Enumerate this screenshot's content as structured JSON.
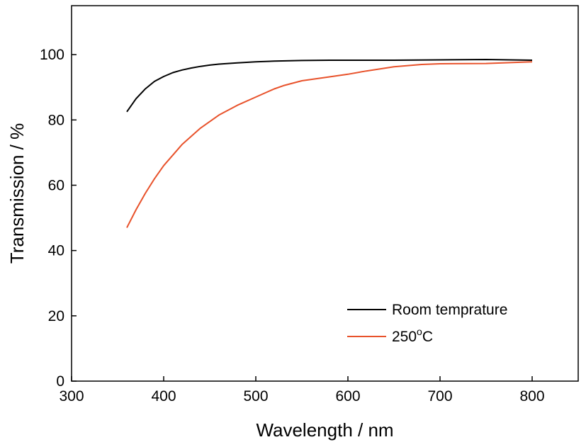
{
  "chart_data": {
    "type": "line",
    "xlabel": "Wavelength / nm",
    "ylabel": "Transmission / %",
    "xlim": [
      300,
      850
    ],
    "ylim": [
      0,
      115
    ],
    "xticks": [
      300,
      400,
      500,
      600,
      700,
      800
    ],
    "yticks": [
      0,
      20,
      40,
      60,
      80,
      100
    ],
    "grid": false,
    "legend": "bottom-right",
    "series": [
      {
        "name": "Room temprature",
        "color": "#000000",
        "x": [
          360,
          365,
          370,
          380,
          390,
          400,
          410,
          420,
          430,
          440,
          450,
          460,
          470,
          480,
          500,
          520,
          550,
          580,
          600,
          650,
          700,
          750,
          800
        ],
        "y": [
          82.5,
          84.5,
          86.5,
          89.5,
          91.8,
          93.3,
          94.5,
          95.3,
          95.9,
          96.4,
          96.8,
          97.1,
          97.3,
          97.5,
          97.8,
          98.0,
          98.2,
          98.3,
          98.3,
          98.3,
          98.4,
          98.5,
          98.3
        ]
      },
      {
        "name": "250",
        "name_sup": "o",
        "name_suffix": "C",
        "color": "#e8522b",
        "x": [
          360,
          370,
          380,
          390,
          400,
          420,
          440,
          460,
          480,
          500,
          520,
          530,
          550,
          580,
          600,
          620,
          650,
          680,
          700,
          750,
          800
        ],
        "y": [
          47.0,
          52.5,
          57.5,
          62.0,
          66.0,
          72.5,
          77.5,
          81.5,
          84.5,
          87.0,
          89.5,
          90.5,
          92.0,
          93.2,
          94.0,
          95.0,
          96.3,
          97.0,
          97.2,
          97.3,
          97.8
        ]
      }
    ]
  }
}
